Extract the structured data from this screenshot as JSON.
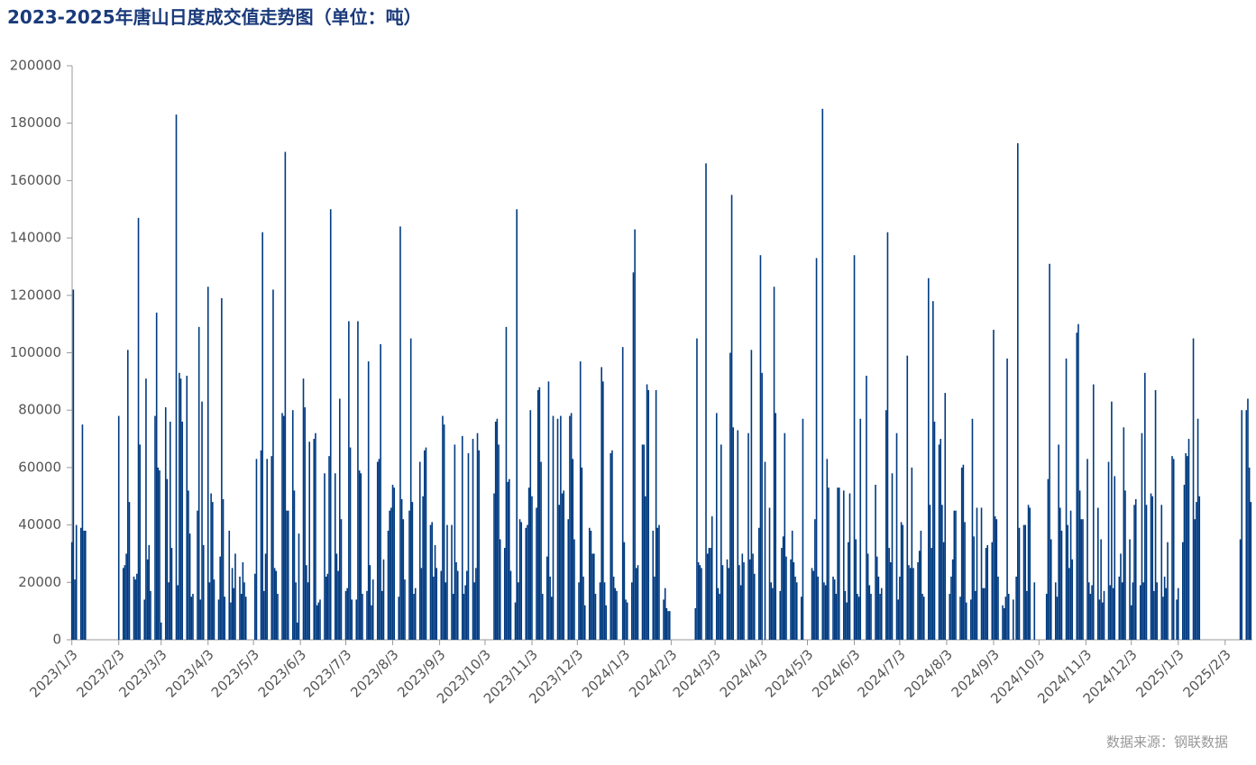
{
  "chart_data": {
    "type": "bar",
    "title": "2023-2025年唐山日度成交值走势图（单位：吨）",
    "source": "数据来源：钢联数据",
    "color": "#003a80",
    "xlim": [
      "2023/1/2",
      "2025/2/21"
    ],
    "xticks": [
      "2023/1/3",
      "2023/2/3",
      "2023/3/3",
      "2023/4/3",
      "2023/5/3",
      "2023/6/3",
      "2023/7/3",
      "2023/8/3",
      "2023/9/3",
      "2023/10/3",
      "2023/11/3",
      "2023/12/3",
      "2024/1/3",
      "2024/2/3",
      "2024/3/3",
      "2024/4/3",
      "2024/5/3",
      "2024/6/3",
      "2024/7/3",
      "2024/8/3",
      "2024/9/3",
      "2024/10/3",
      "2024/11/3",
      "2024/12/3",
      "2025/1/3",
      "2025/2/3"
    ],
    "ylim": [
      0,
      200000
    ],
    "yticks": [
      0,
      20000,
      40000,
      60000,
      80000,
      100000,
      120000,
      140000,
      160000,
      180000,
      200000
    ],
    "x": [
      "2023/1/3",
      "2023/1/4",
      "2023/1/5",
      "2023/1/6",
      "2023/1/9",
      "2023/1/10",
      "2023/1/11",
      "2023/1/12",
      "2023/2/3",
      "2023/2/6",
      "2023/2/7",
      "2023/2/8",
      "2023/2/9",
      "2023/2/10",
      "2023/2/13",
      "2023/2/14",
      "2023/2/15",
      "2023/2/16",
      "2023/2/17",
      "2023/2/20",
      "2023/2/21",
      "2023/2/22",
      "2023/2/23",
      "2023/2/24",
      "2023/2/27",
      "2023/2/28",
      "2023/3/1",
      "2023/3/2",
      "2023/3/3",
      "2023/3/6",
      "2023/3/7",
      "2023/3/8",
      "2023/3/9",
      "2023/3/10",
      "2023/3/13",
      "2023/3/14",
      "2023/3/15",
      "2023/3/16",
      "2023/3/17",
      "2023/3/20",
      "2023/3/21",
      "2023/3/22",
      "2023/3/23",
      "2023/3/24",
      "2023/3/27",
      "2023/3/28",
      "2023/3/29",
      "2023/3/30",
      "2023/3/31",
      "2023/4/3",
      "2023/4/4",
      "2023/4/5",
      "2023/4/6",
      "2023/4/7",
      "2023/4/10",
      "2023/4/11",
      "2023/4/12",
      "2023/4/13",
      "2023/4/14",
      "2023/4/17",
      "2023/4/18",
      "2023/4/19",
      "2023/4/20",
      "2023/4/21",
      "2023/4/24",
      "2023/4/25",
      "2023/4/26",
      "2023/4/27",
      "2023/4/28",
      "2023/5/4",
      "2023/5/5",
      "2023/5/8",
      "2023/5/9",
      "2023/5/10",
      "2023/5/11",
      "2023/5/12",
      "2023/5/15",
      "2023/5/16",
      "2023/5/17",
      "2023/5/18",
      "2023/5/19",
      "2023/5/22",
      "2023/5/23",
      "2023/5/24",
      "2023/5/25",
      "2023/5/26",
      "2023/5/29",
      "2023/5/30",
      "2023/5/31",
      "2023/6/1",
      "2023/6/2",
      "2023/6/5",
      "2023/6/6",
      "2023/6/7",
      "2023/6/8",
      "2023/6/9",
      "2023/6/12",
      "2023/6/13",
      "2023/6/14",
      "2023/6/15",
      "2023/6/16",
      "2023/6/19",
      "2023/6/20",
      "2023/6/21",
      "2023/6/22",
      "2023/6/23",
      "2023/6/26",
      "2023/6/27",
      "2023/6/28",
      "2023/6/29",
      "2023/6/30",
      "2023/7/3",
      "2023/7/4",
      "2023/7/5",
      "2023/7/6",
      "2023/7/7",
      "2023/7/10",
      "2023/7/11",
      "2023/7/12",
      "2023/7/13",
      "2023/7/14",
      "2023/7/17",
      "2023/7/18",
      "2023/7/19",
      "2023/7/20",
      "2023/7/21",
      "2023/7/24",
      "2023/7/25",
      "2023/7/26",
      "2023/7/27",
      "2023/7/28",
      "2023/7/31",
      "2023/8/1",
      "2023/8/2",
      "2023/8/3",
      "2023/8/4",
      "2023/8/7",
      "2023/8/8",
      "2023/8/9",
      "2023/8/10",
      "2023/8/11",
      "2023/8/14",
      "2023/8/15",
      "2023/8/16",
      "2023/8/17",
      "2023/8/18",
      "2023/8/21",
      "2023/8/22",
      "2023/8/23",
      "2023/8/24",
      "2023/8/25",
      "2023/8/28",
      "2023/8/29",
      "2023/8/30",
      "2023/8/31",
      "2023/9/1",
      "2023/9/4",
      "2023/9/5",
      "2023/9/6",
      "2023/9/7",
      "2023/9/8",
      "2023/9/11",
      "2023/9/12",
      "2023/9/13",
      "2023/9/14",
      "2023/9/15",
      "2023/9/18",
      "2023/9/19",
      "2023/9/20",
      "2023/9/21",
      "2023/9/22",
      "2023/9/25",
      "2023/9/26",
      "2023/9/27",
      "2023/9/28",
      "2023/9/29",
      "2023/10/9",
      "2023/10/10",
      "2023/10/11",
      "2023/10/12",
      "2023/10/13",
      "2023/10/16",
      "2023/10/17",
      "2023/10/18",
      "2023/10/19",
      "2023/10/20",
      "2023/10/23",
      "2023/10/24",
      "2023/10/25",
      "2023/10/26",
      "2023/10/27",
      "2023/10/30",
      "2023/10/31",
      "2023/11/1",
      "2023/11/2",
      "2023/11/3",
      "2023/11/6",
      "2023/11/7",
      "2023/11/8",
      "2023/11/9",
      "2023/11/10",
      "2023/11/13",
      "2023/11/14",
      "2023/11/15",
      "2023/11/16",
      "2023/11/17",
      "2023/11/20",
      "2023/11/21",
      "2023/11/22",
      "2023/11/23",
      "2023/11/24",
      "2023/11/27",
      "2023/11/28",
      "2023/11/29",
      "2023/11/30",
      "2023/12/1",
      "2023/12/4",
      "2023/12/5",
      "2023/12/6",
      "2023/12/7",
      "2023/12/8",
      "2023/12/11",
      "2023/12/12",
      "2023/12/13",
      "2023/12/14",
      "2023/12/15",
      "2023/12/18",
      "2023/12/19",
      "2023/12/20",
      "2023/12/21",
      "2023/12/22",
      "2023/12/25",
      "2023/12/26",
      "2023/12/27",
      "2023/12/28",
      "2023/12/29",
      "2024/1/2",
      "2024/1/3",
      "2024/1/4",
      "2024/1/5",
      "2024/1/8",
      "2024/1/9",
      "2024/1/10",
      "2024/1/11",
      "2024/1/12",
      "2024/1/15",
      "2024/1/16",
      "2024/1/17",
      "2024/1/18",
      "2024/1/19",
      "2024/1/22",
      "2024/1/23",
      "2024/1/24",
      "2024/1/25",
      "2024/1/26",
      "2024/1/29",
      "2024/1/30",
      "2024/1/31",
      "2024/2/1",
      "2024/2/2",
      "2024/2/19",
      "2024/2/20",
      "2024/2/21",
      "2024/2/22",
      "2024/2/23",
      "2024/2/26",
      "2024/2/27",
      "2024/2/28",
      "2024/2/29",
      "2024/3/1",
      "2024/3/4",
      "2024/3/5",
      "2024/3/6",
      "2024/3/7",
      "2024/3/8",
      "2024/3/11",
      "2024/3/12",
      "2024/3/13",
      "2024/3/14",
      "2024/3/15",
      "2024/3/18",
      "2024/3/19",
      "2024/3/20",
      "2024/3/21",
      "2024/3/22",
      "2024/3/25",
      "2024/3/26",
      "2024/3/27",
      "2024/3/28",
      "2024/3/29",
      "2024/4/1",
      "2024/4/2",
      "2024/4/3",
      "2024/4/5",
      "2024/4/8",
      "2024/4/9",
      "2024/4/10",
      "2024/4/11",
      "2024/4/12",
      "2024/4/15",
      "2024/4/16",
      "2024/4/17",
      "2024/4/18",
      "2024/4/19",
      "2024/4/22",
      "2024/4/23",
      "2024/4/24",
      "2024/4/25",
      "2024/4/26",
      "2024/4/29",
      "2024/4/30",
      "2024/5/6",
      "2024/5/7",
      "2024/5/8",
      "2024/5/9",
      "2024/5/10",
      "2024/5/13",
      "2024/5/14",
      "2024/5/15",
      "2024/5/16",
      "2024/5/17",
      "2024/5/20",
      "2024/5/21",
      "2024/5/22",
      "2024/5/23",
      "2024/5/24",
      "2024/5/27",
      "2024/5/28",
      "2024/5/29",
      "2024/5/30",
      "2024/5/31",
      "2024/6/3",
      "2024/6/4",
      "2024/6/5",
      "2024/6/6",
      "2024/6/7",
      "2024/6/11",
      "2024/6/12",
      "2024/6/13",
      "2024/6/14",
      "2024/6/17",
      "2024/6/18",
      "2024/6/19",
      "2024/6/20",
      "2024/6/21",
      "2024/6/24",
      "2024/6/25",
      "2024/6/26",
      "2024/6/27",
      "2024/6/28",
      "2024/7/1",
      "2024/7/2",
      "2024/7/3",
      "2024/7/4",
      "2024/7/5",
      "2024/7/8",
      "2024/7/9",
      "2024/7/10",
      "2024/7/11",
      "2024/7/12",
      "2024/7/15",
      "2024/7/16",
      "2024/7/17",
      "2024/7/18",
      "2024/7/19",
      "2024/7/22",
      "2024/7/23",
      "2024/7/24",
      "2024/7/25",
      "2024/7/26",
      "2024/7/29",
      "2024/7/30",
      "2024/7/31",
      "2024/8/1",
      "2024/8/2",
      "2024/8/5",
      "2024/8/6",
      "2024/8/7",
      "2024/8/8",
      "2024/8/9",
      "2024/8/12",
      "2024/8/13",
      "2024/8/14",
      "2024/8/15",
      "2024/8/16",
      "2024/8/19",
      "2024/8/20",
      "2024/8/21",
      "2024/8/22",
      "2024/8/23",
      "2024/8/26",
      "2024/8/27",
      "2024/8/28",
      "2024/8/29",
      "2024/8/30",
      "2024/9/2",
      "2024/9/3",
      "2024/9/4",
      "2024/9/5",
      "2024/9/6",
      "2024/9/9",
      "2024/9/10",
      "2024/9/11",
      "2024/9/12",
      "2024/9/13",
      "2024/9/16",
      "2024/9/18",
      "2024/9/19",
      "2024/9/20",
      "2024/9/23",
      "2024/9/24",
      "2024/9/25",
      "2024/9/26",
      "2024/9/27",
      "2024/9/30",
      "2024/10/8",
      "2024/10/9",
      "2024/10/10",
      "2024/10/11",
      "2024/10/14",
      "2024/10/15",
      "2024/10/16",
      "2024/10/17",
      "2024/10/18",
      "2024/10/21",
      "2024/10/22",
      "2024/10/23",
      "2024/10/24",
      "2024/10/25",
      "2024/10/28",
      "2024/10/29",
      "2024/10/30",
      "2024/10/31",
      "2024/11/1",
      "2024/11/4",
      "2024/11/5",
      "2024/11/6",
      "2024/11/7",
      "2024/11/8",
      "2024/11/11",
      "2024/11/12",
      "2024/11/13",
      "2024/11/14",
      "2024/11/15",
      "2024/11/18",
      "2024/11/19",
      "2024/11/20",
      "2024/11/21",
      "2024/11/22",
      "2024/11/25",
      "2024/11/26",
      "2024/11/27",
      "2024/11/28",
      "2024/11/29",
      "2024/12/2",
      "2024/12/3",
      "2024/12/4",
      "2024/12/5",
      "2024/12/6",
      "2024/12/9",
      "2024/12/10",
      "2024/12/11",
      "2024/12/12",
      "2024/12/13",
      "2024/12/16",
      "2024/12/17",
      "2024/12/18",
      "2024/12/19",
      "2024/12/20",
      "2024/12/23",
      "2024/12/24",
      "2024/12/25",
      "2024/12/26",
      "2024/12/27",
      "2024/12/30",
      "2024/12/31",
      "2025/1/2",
      "2025/1/3",
      "2025/1/6",
      "2025/1/7",
      "2025/1/8",
      "2025/1/9",
      "2025/1/10",
      "2025/1/13",
      "2025/1/14",
      "2025/1/15",
      "2025/1/16",
      "2025/1/17",
      "2025/2/13",
      "2025/2/14",
      "2025/2/17",
      "2025/2/18",
      "2025/2/19",
      "2025/2/20"
    ],
    "values": [
      34000,
      122000,
      21000,
      40000,
      39000,
      75000,
      38000,
      38000,
      78000,
      25000,
      26000,
      30000,
      101000,
      48000,
      22000,
      21000,
      23000,
      147000,
      68000,
      14000,
      91000,
      28000,
      33000,
      17000,
      78000,
      114000,
      60000,
      59000,
      6000,
      81000,
      56000,
      20000,
      76000,
      32000,
      183000,
      19000,
      93000,
      91000,
      76000,
      92000,
      52000,
      37000,
      15000,
      16000,
      45000,
      109000,
      14000,
      83000,
      33000,
      123000,
      20000,
      51000,
      48000,
      21000,
      14000,
      29000,
      119000,
      49000,
      15000,
      38000,
      13000,
      25000,
      18000,
      30000,
      22000,
      16000,
      27000,
      20000,
      15000,
      23000,
      63000,
      66000,
      142000,
      17000,
      30000,
      63000,
      64000,
      122000,
      25000,
      24000,
      16000,
      79000,
      78000,
      170000,
      45000,
      45000,
      80000,
      52000,
      20000,
      6000,
      37000,
      91000,
      81000,
      26000,
      20000,
      69000,
      70000,
      72000,
      12000,
      13000,
      14000,
      58000,
      22000,
      23000,
      64000,
      150000,
      58000,
      30000,
      24000,
      84000,
      42000,
      17000,
      18000,
      111000,
      67000,
      14000,
      14000,
      111000,
      59000,
      58000,
      16000,
      17000,
      97000,
      26000,
      12000,
      21000,
      62000,
      63000,
      103000,
      17000,
      28000,
      38000,
      45000,
      46000,
      54000,
      53000,
      15000,
      144000,
      49000,
      42000,
      21000,
      45000,
      105000,
      48000,
      16000,
      18000,
      62000,
      25000,
      50000,
      66000,
      67000,
      40000,
      41000,
      22000,
      33000,
      25000,
      24000,
      78000,
      75000,
      20000,
      40000,
      40000,
      16000,
      68000,
      27000,
      24000,
      71000,
      16000,
      19000,
      24000,
      65000,
      70000,
      20000,
      25000,
      72000,
      66000,
      51000,
      76000,
      77000,
      68000,
      35000,
      32000,
      109000,
      55000,
      56000,
      24000,
      13000,
      150000,
      20000,
      42000,
      41000,
      39000,
      40000,
      53000,
      80000,
      50000,
      46000,
      87000,
      88000,
      62000,
      16000,
      29000,
      90000,
      22000,
      15000,
      78000,
      77000,
      47000,
      78000,
      51000,
      52000,
      42000,
      78000,
      79000,
      63000,
      35000,
      20000,
      97000,
      60000,
      22000,
      12000,
      39000,
      38000,
      30000,
      30000,
      16000,
      20000,
      95000,
      90000,
      20000,
      12000,
      65000,
      66000,
      22000,
      18000,
      17000,
      102000,
      34000,
      14000,
      13000,
      20000,
      128000,
      143000,
      25000,
      26000,
      68000,
      68000,
      50000,
      89000,
      87000,
      38000,
      22000,
      87000,
      39000,
      40000,
      14000,
      18000,
      11000,
      10000,
      10000,
      11000,
      105000,
      27000,
      26000,
      25000,
      166000,
      30000,
      32000,
      32000,
      43000,
      79000,
      18000,
      16000,
      68000,
      26000,
      28000,
      25000,
      100000,
      155000,
      74000,
      73000,
      26000,
      19000,
      30000,
      27000,
      72000,
      28000,
      101000,
      30000,
      23000,
      39000,
      134000,
      93000,
      62000,
      46000,
      20000,
      18000,
      123000,
      79000,
      17000,
      32000,
      36000,
      72000,
      29000,
      28000,
      38000,
      27000,
      22000,
      20000,
      15000,
      77000,
      25000,
      24000,
      42000,
      133000,
      22000,
      185000,
      20000,
      19000,
      63000,
      53000,
      22000,
      21000,
      16000,
      53000,
      53000,
      52000,
      17000,
      13000,
      34000,
      51000,
      134000,
      35000,
      16000,
      15000,
      77000,
      92000,
      30000,
      19000,
      16000,
      54000,
      29000,
      22000,
      16000,
      18000,
      80000,
      142000,
      32000,
      27000,
      58000,
      72000,
      14000,
      22000,
      41000,
      40000,
      99000,
      26000,
      25000,
      60000,
      25000,
      27000,
      31000,
      38000,
      16000,
      15000,
      126000,
      47000,
      32000,
      118000,
      76000,
      68000,
      70000,
      47000,
      34000,
      86000,
      16000,
      22000,
      28000,
      45000,
      45000,
      15000,
      60000,
      61000,
      41000,
      13000,
      14000,
      77000,
      36000,
      17000,
      46000,
      46000,
      18000,
      18000,
      32000,
      33000,
      34000,
      108000,
      43000,
      42000,
      22000,
      12000,
      11000,
      15000,
      98000,
      16000,
      14000,
      22000,
      173000,
      39000,
      40000,
      40000,
      17000,
      47000,
      46000,
      20000,
      16000,
      56000,
      131000,
      35000,
      20000,
      15000,
      68000,
      46000,
      38000,
      98000,
      40000,
      25000,
      45000,
      28000,
      107000,
      110000,
      52000,
      42000,
      42000,
      63000,
      20000,
      16000,
      19000,
      89000,
      46000,
      14000,
      35000,
      13000,
      17000,
      62000,
      19000,
      83000,
      18000,
      57000,
      22000,
      30000,
      20000,
      74000,
      52000,
      35000,
      12000,
      20000,
      47000,
      49000,
      19000,
      72000,
      20000,
      93000,
      47000,
      51000,
      50000,
      17000,
      87000,
      20000,
      47000,
      15000,
      22000,
      18000,
      34000,
      64000,
      63000,
      14000,
      18000,
      34000,
      54000,
      65000,
      64000,
      70000,
      105000,
      42000,
      48000,
      77000,
      50000,
      35000,
      80000,
      80000,
      84000,
      60000,
      48000
    ]
  }
}
